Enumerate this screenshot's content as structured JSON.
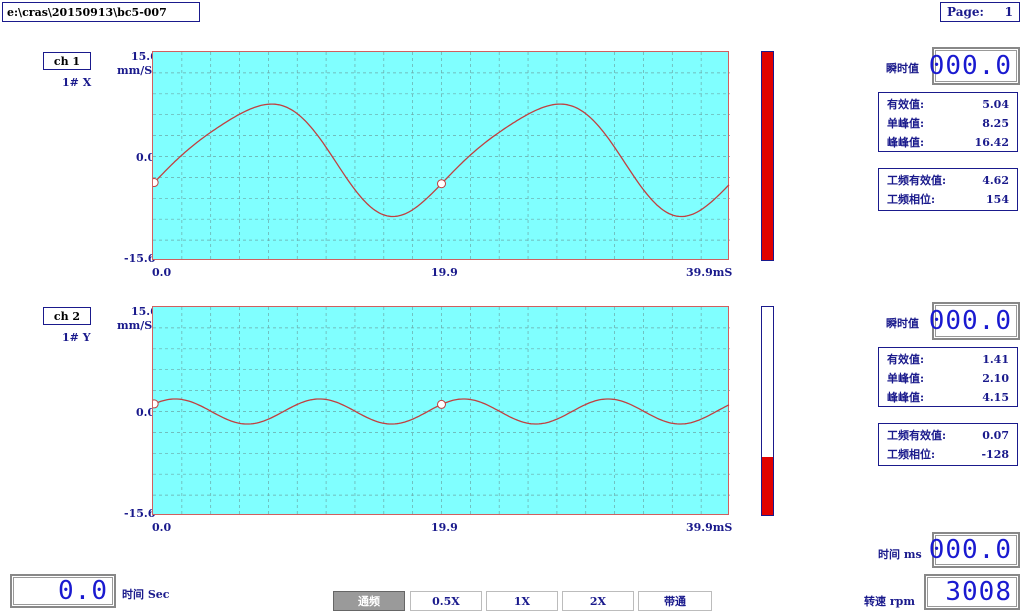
{
  "header": {
    "path": "e:\\cras\\20150913\\bc5-007",
    "page_label": "Page:",
    "page_number": "1"
  },
  "channels": [
    {
      "name": "ch 1",
      "sensor": "1# X",
      "y_max": "15.6",
      "unit": "mm/S",
      "y_mid": "0.0",
      "y_min": "-15.6",
      "x_start": "0.0",
      "x_mid": "19.9",
      "x_end": "39.9mS",
      "bar_level": 1.0,
      "instant_label": "瞬时值",
      "instant_value": "000.0",
      "stats": [
        {
          "label": "有效值:",
          "value": "5.04"
        },
        {
          "label": "单峰值:",
          "value": "8.25"
        },
        {
          "label": "峰峰值:",
          "value": "16.42"
        }
      ],
      "freq_stats": [
        {
          "label": "工频有效值:",
          "value": "4.62"
        },
        {
          "label": "工频相位:",
          "value": "154"
        }
      ]
    },
    {
      "name": "ch 2",
      "sensor": "1# Y",
      "y_max": "15.6",
      "unit": "mm/S",
      "y_mid": "0.0",
      "y_min": "-15.6",
      "x_start": "0.0",
      "x_mid": "19.9",
      "x_end": "39.9mS",
      "bar_level": 0.28,
      "instant_label": "瞬时值",
      "instant_value": "000.0",
      "stats": [
        {
          "label": "有效值:",
          "value": "1.41"
        },
        {
          "label": "单峰值:",
          "value": "2.10"
        },
        {
          "label": "峰峰值:",
          "value": "4.15"
        }
      ],
      "freq_stats": [
        {
          "label": "工频有效值:",
          "value": "0.07"
        },
        {
          "label": "工频相位:",
          "value": "-128"
        }
      ]
    }
  ],
  "footer": {
    "time_sec_label": "时间 Sec",
    "time_sec_value": "0.0",
    "time_ms_label": "时间 ms",
    "time_ms_value": "000.0",
    "rpm_label": "转速 rpm",
    "rpm_value": "3008"
  },
  "tabs": [
    {
      "label": "通频",
      "active": true
    },
    {
      "label": "0.5X",
      "active": false
    },
    {
      "label": "1X",
      "active": false
    },
    {
      "label": "2X",
      "active": false
    },
    {
      "label": "带通",
      "active": false
    }
  ],
  "colors": {
    "plot_bg": "#80ffff",
    "trace": "#c04040",
    "bar": "#e00000",
    "text": "#1a1a8c"
  }
}
